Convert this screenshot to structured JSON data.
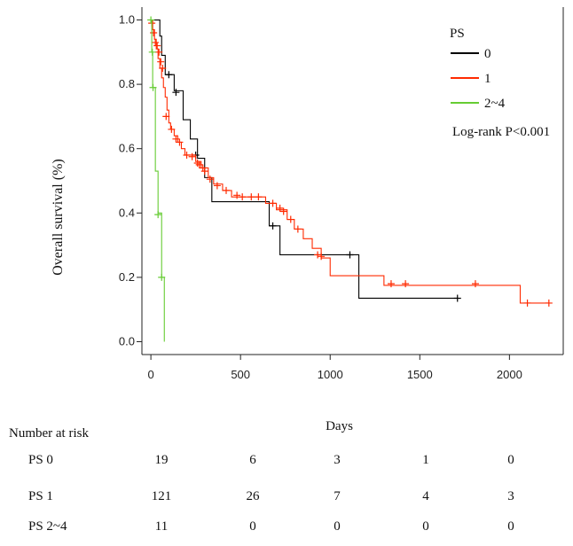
{
  "chart_data": {
    "type": "line",
    "title": "",
    "xlabel": "Days",
    "ylabel": "Overall survival (%)",
    "xlim": [
      -50,
      2300
    ],
    "ylim": [
      -0.04,
      1.04
    ],
    "xticks": [
      0,
      500,
      1000,
      1500,
      2000
    ],
    "yticks": [
      "0.0",
      "0.2",
      "0.4",
      "0.6",
      "0.8",
      "1.0"
    ],
    "legend": {
      "title": "PS",
      "note": "Log-rank P<0.001",
      "entries": [
        {
          "label": "0",
          "color": "#000000"
        },
        {
          "label": "1",
          "color": "#ff2a00"
        },
        {
          "label": "2~4",
          "color": "#66cc33"
        }
      ]
    },
    "series": [
      {
        "name": "0",
        "color": "#000000",
        "steps": [
          [
            0,
            1.0
          ],
          [
            50,
            0.95
          ],
          [
            60,
            0.89
          ],
          [
            80,
            0.83
          ],
          [
            130,
            0.78
          ],
          [
            180,
            0.69
          ],
          [
            220,
            0.63
          ],
          [
            260,
            0.57
          ],
          [
            300,
            0.51
          ],
          [
            340,
            0.435
          ],
          [
            660,
            0.36
          ],
          [
            720,
            0.27
          ],
          [
            1160,
            0.135
          ],
          [
            1710,
            0.135
          ]
        ],
        "censors": [
          [
            100,
            0.83
          ],
          [
            140,
            0.775
          ],
          [
            250,
            0.58
          ],
          [
            680,
            0.36
          ],
          [
            1110,
            0.27
          ],
          [
            1710,
            0.135
          ]
        ]
      },
      {
        "name": "1",
        "color": "#ff2a00",
        "steps": [
          [
            0,
            1.0
          ],
          [
            10,
            0.97
          ],
          [
            20,
            0.94
          ],
          [
            30,
            0.91
          ],
          [
            40,
            0.88
          ],
          [
            50,
            0.85
          ],
          [
            60,
            0.82
          ],
          [
            70,
            0.79
          ],
          [
            80,
            0.76
          ],
          [
            90,
            0.72
          ],
          [
            100,
            0.68
          ],
          [
            110,
            0.66
          ],
          [
            130,
            0.64
          ],
          [
            150,
            0.62
          ],
          [
            170,
            0.6
          ],
          [
            190,
            0.58
          ],
          [
            250,
            0.56
          ],
          [
            280,
            0.54
          ],
          [
            320,
            0.51
          ],
          [
            350,
            0.49
          ],
          [
            400,
            0.47
          ],
          [
            450,
            0.45
          ],
          [
            640,
            0.43
          ],
          [
            700,
            0.41
          ],
          [
            760,
            0.38
          ],
          [
            800,
            0.35
          ],
          [
            850,
            0.32
          ],
          [
            900,
            0.29
          ],
          [
            950,
            0.26
          ],
          [
            1000,
            0.205
          ],
          [
            1300,
            0.175
          ],
          [
            2060,
            0.12
          ],
          [
            2220,
            0.12
          ]
        ],
        "censors": [
          [
            5,
            0.99
          ],
          [
            15,
            0.96
          ],
          [
            25,
            0.93
          ],
          [
            35,
            0.92
          ],
          [
            45,
            0.9
          ],
          [
            55,
            0.87
          ],
          [
            65,
            0.85
          ],
          [
            85,
            0.7
          ],
          [
            115,
            0.66
          ],
          [
            140,
            0.63
          ],
          [
            160,
            0.62
          ],
          [
            200,
            0.58
          ],
          [
            230,
            0.575
          ],
          [
            260,
            0.555
          ],
          [
            270,
            0.55
          ],
          [
            290,
            0.54
          ],
          [
            300,
            0.53
          ],
          [
            330,
            0.505
          ],
          [
            370,
            0.485
          ],
          [
            420,
            0.47
          ],
          [
            480,
            0.455
          ],
          [
            510,
            0.45
          ],
          [
            560,
            0.45
          ],
          [
            600,
            0.45
          ],
          [
            680,
            0.43
          ],
          [
            720,
            0.415
          ],
          [
            740,
            0.405
          ],
          [
            780,
            0.38
          ],
          [
            820,
            0.35
          ],
          [
            930,
            0.27
          ],
          [
            950,
            0.265
          ],
          [
            1340,
            0.18
          ],
          [
            1420,
            0.18
          ],
          [
            1810,
            0.18
          ],
          [
            2100,
            0.12
          ],
          [
            2220,
            0.12
          ]
        ]
      },
      {
        "name": "2~4",
        "color": "#66cc33",
        "steps": [
          [
            0,
            1.0
          ],
          [
            5,
            0.9
          ],
          [
            10,
            0.79
          ],
          [
            25,
            0.53
          ],
          [
            40,
            0.4
          ],
          [
            60,
            0.2
          ],
          [
            75,
            0.0
          ]
        ],
        "censors": [
          [
            0,
            1.0
          ],
          [
            8,
            0.9
          ],
          [
            12,
            0.79
          ],
          [
            40,
            0.395
          ],
          [
            60,
            0.2
          ]
        ]
      }
    ]
  },
  "risk_table": {
    "title": "Number at risk",
    "rows": [
      {
        "label": "PS 0",
        "values": [
          "19",
          "6",
          "3",
          "1",
          "0"
        ]
      },
      {
        "label": "PS 1",
        "values": [
          "121",
          "26",
          "7",
          "4",
          "3"
        ]
      },
      {
        "label": "PS 2~4",
        "values": [
          "11",
          "0",
          "0",
          "0",
          "0"
        ]
      }
    ]
  }
}
